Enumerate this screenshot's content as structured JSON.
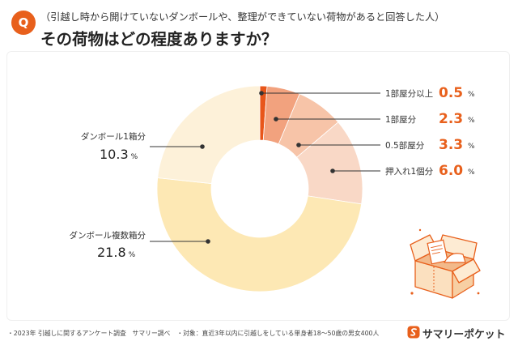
{
  "header": {
    "q_mark": "Q"
  },
  "chart_data": {
    "type": "pie",
    "donut": true,
    "title": "その荷物はどの程度ありますか？",
    "subtitle": "（引越し時から開けていないダンボールや、整理ができていない荷物があると回答した人）",
    "categories": [
      "1部屋分以上",
      "1部屋分",
      "0.5部屋分",
      "押入れ1個分",
      "ダンボール複数箱分",
      "ダンボール1箱分"
    ],
    "values": [
      0.5,
      2.3,
      3.3,
      6.0,
      21.8,
      10.3
    ],
    "value_labels": [
      "0.5",
      "2.3",
      "3.3",
      "6.0",
      "21.8",
      "10.3"
    ],
    "unit": "%",
    "colors": [
      "#e8561a",
      "#f2a27e",
      "#f7c4a8",
      "#f9d8c6",
      "#fde8b4",
      "#fdf1d9"
    ]
  },
  "theme": {
    "accent": "#e8601c"
  },
  "icons": {
    "logo": "pocket-logo-icon",
    "illustration": "open-cardboard-box"
  },
  "footer": {
    "source": "・2023年 引越しに関するアンケート調査　サマリー調べ",
    "target": "・対象：直近3年以内に引越しをしている単身者18～50歳の男女400人"
  },
  "logo": {
    "text": "サマリーポケット"
  }
}
